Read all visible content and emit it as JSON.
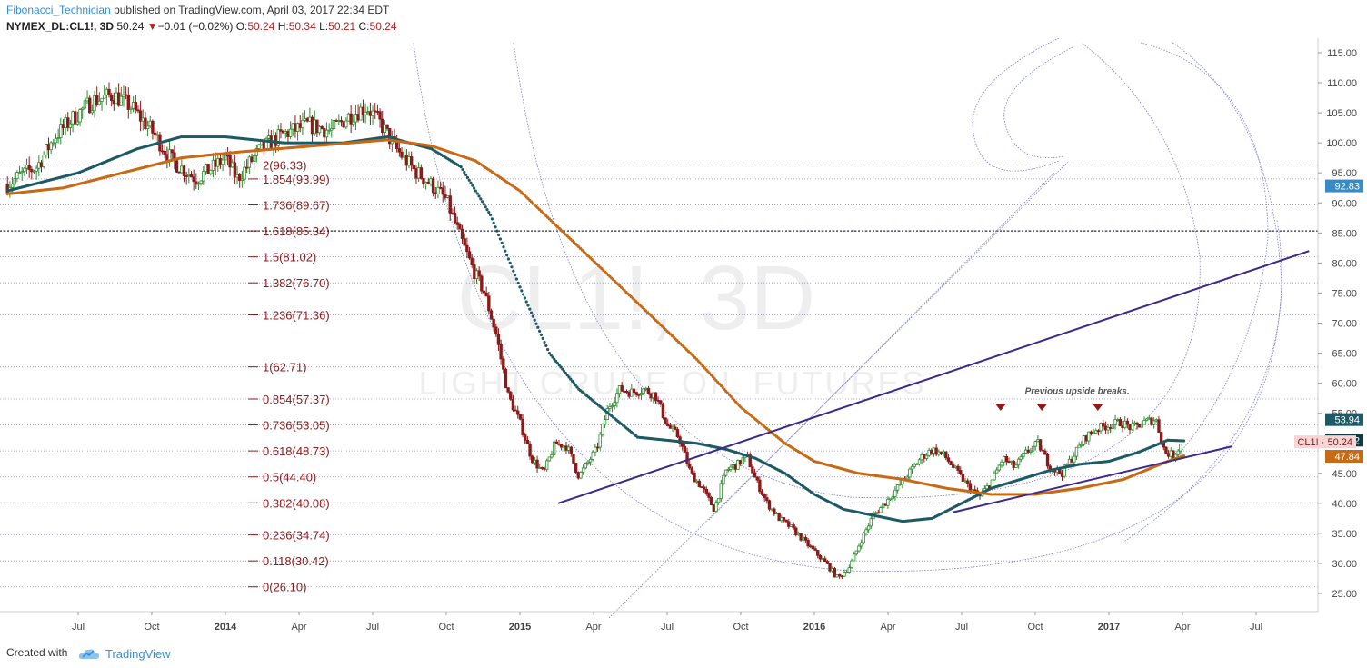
{
  "header": {
    "author": "Fibonacci_Technician",
    "published_text": " published on TradingView.com, April 03, 2017 22:34 EDT",
    "symbol": "NYMEX_DL:CL1!, 3D",
    "last": "50.24",
    "change_text": "−0.01 (−0.02%)",
    "o_label": "O:",
    "o_value": "50.24",
    "h_label": "H:",
    "h_value": "50.34",
    "l_label": "L:",
    "l_value": "50.21",
    "c_label": "C:",
    "c_value": "50.24"
  },
  "footer": {
    "created_with": "Created with",
    "brand": "TradingView"
  },
  "colors": {
    "candle_up": "#2e8b2e",
    "candle_down": "#8b1a1a",
    "ma_fast": "#1e5a66",
    "ma_slow": "#c76a16",
    "trendline": "#3a2a8c",
    "fib_line": "#8c8ccc",
    "fib_text": "#8b1a1a",
    "watermark": "#eeeeee"
  },
  "chart_data": {
    "type": "candlestick",
    "watermark_main": "CL1!, 3D",
    "watermark_sub": "LIGHT CRUDE OIL FUTURES",
    "y_axis": {
      "range": [
        22,
        117
      ],
      "ticks": [
        "115.00",
        "110.00",
        "105.00",
        "100.00",
        "95.00",
        "90.00",
        "85.00",
        "80.00",
        "75.00",
        "70.00",
        "65.00",
        "60.00",
        "55.00",
        "50.00",
        "45.00",
        "40.00",
        "35.00",
        "30.00",
        "25.00"
      ]
    },
    "x_axis": {
      "ticks": [
        {
          "label": "Jul",
          "t": 2013.5,
          "bold": false
        },
        {
          "label": "Oct",
          "t": 2013.75,
          "bold": false
        },
        {
          "label": "2014",
          "t": 2014.0,
          "bold": true
        },
        {
          "label": "Apr",
          "t": 2014.25,
          "bold": false
        },
        {
          "label": "Jul",
          "t": 2014.5,
          "bold": false
        },
        {
          "label": "Oct",
          "t": 2014.75,
          "bold": false
        },
        {
          "label": "2015",
          "t": 2015.0,
          "bold": true
        },
        {
          "label": "Apr",
          "t": 2015.25,
          "bold": false
        },
        {
          "label": "Jul",
          "t": 2015.5,
          "bold": false
        },
        {
          "label": "Oct",
          "t": 2015.75,
          "bold": false
        },
        {
          "label": "2016",
          "t": 2016.0,
          "bold": true
        },
        {
          "label": "Apr",
          "t": 2016.25,
          "bold": false
        },
        {
          "label": "Jul",
          "t": 2016.5,
          "bold": false
        },
        {
          "label": "Oct",
          "t": 2016.75,
          "bold": false
        },
        {
          "label": "2017",
          "t": 2017.0,
          "bold": true
        },
        {
          "label": "Apr",
          "t": 2017.25,
          "bold": false
        },
        {
          "label": "Jul",
          "t": 2017.5,
          "bold": false
        }
      ]
    },
    "price_path": [
      [
        2013.26,
        93.0
      ],
      [
        2013.3,
        94.5
      ],
      [
        2013.36,
        96.0
      ],
      [
        2013.42,
        101.0
      ],
      [
        2013.48,
        104.0
      ],
      [
        2013.55,
        107.0
      ],
      [
        2013.62,
        108.0
      ],
      [
        2013.68,
        106.0
      ],
      [
        2013.75,
        102.0
      ],
      [
        2013.82,
        97.0
      ],
      [
        2013.9,
        94.0
      ],
      [
        2013.96,
        96.0
      ],
      [
        2014.0,
        97.5
      ],
      [
        2014.04,
        94.0
      ],
      [
        2014.08,
        96.5
      ],
      [
        2014.12,
        99.0
      ],
      [
        2014.2,
        101.5
      ],
      [
        2014.28,
        103.0
      ],
      [
        2014.36,
        102.0
      ],
      [
        2014.42,
        104.5
      ],
      [
        2014.48,
        106.0
      ],
      [
        2014.53,
        103.0
      ],
      [
        2014.58,
        99.0
      ],
      [
        2014.64,
        95.5
      ],
      [
        2014.7,
        93.0
      ],
      [
        2014.75,
        90.5
      ],
      [
        2014.8,
        84.0
      ],
      [
        2014.84,
        79.0
      ],
      [
        2014.88,
        75.0
      ],
      [
        2014.92,
        68.0
      ],
      [
        2014.96,
        58.0
      ],
      [
        2015.0,
        53.5
      ],
      [
        2015.04,
        47.5
      ],
      [
        2015.08,
        45.0
      ],
      [
        2015.12,
        50.0
      ],
      [
        2015.16,
        49.5
      ],
      [
        2015.2,
        44.5
      ],
      [
        2015.26,
        49.0
      ],
      [
        2015.3,
        56.0
      ],
      [
        2015.34,
        59.0
      ],
      [
        2015.38,
        58.5
      ],
      [
        2015.42,
        59.0
      ],
      [
        2015.46,
        58.0
      ],
      [
        2015.5,
        53.0
      ],
      [
        2015.54,
        51.0
      ],
      [
        2015.58,
        45.0
      ],
      [
        2015.62,
        42.5
      ],
      [
        2015.66,
        39.0
      ],
      [
        2015.7,
        45.5
      ],
      [
        2015.74,
        46.5
      ],
      [
        2015.77,
        48.0
      ],
      [
        2015.8,
        44.0
      ],
      [
        2015.84,
        40.0
      ],
      [
        2015.88,
        37.5
      ],
      [
        2015.92,
        36.0
      ],
      [
        2015.96,
        34.0
      ],
      [
        2016.0,
        32.0
      ],
      [
        2016.04,
        30.0
      ],
      [
        2016.08,
        27.5
      ],
      [
        2016.12,
        29.5
      ],
      [
        2016.16,
        34.0
      ],
      [
        2016.2,
        38.0
      ],
      [
        2016.24,
        40.0
      ],
      [
        2016.28,
        42.5
      ],
      [
        2016.32,
        45.0
      ],
      [
        2016.36,
        47.5
      ],
      [
        2016.4,
        49.0
      ],
      [
        2016.44,
        48.0
      ],
      [
        2016.48,
        45.5
      ],
      [
        2016.52,
        43.0
      ],
      [
        2016.56,
        41.0
      ],
      [
        2016.6,
        43.5
      ],
      [
        2016.64,
        47.5
      ],
      [
        2016.68,
        46.0
      ],
      [
        2016.72,
        48.5
      ],
      [
        2016.76,
        50.0
      ],
      [
        2016.8,
        46.0
      ],
      [
        2016.84,
        45.0
      ],
      [
        2016.88,
        48.0
      ],
      [
        2016.92,
        51.0
      ],
      [
        2016.96,
        52.5
      ],
      [
        2017.0,
        53.0
      ],
      [
        2017.04,
        53.5
      ],
      [
        2017.08,
        52.5
      ],
      [
        2017.12,
        53.5
      ],
      [
        2017.16,
        54.0
      ],
      [
        2017.19,
        48.5
      ],
      [
        2017.22,
        48.0
      ],
      [
        2017.25,
        50.24
      ]
    ],
    "moving_averages": [
      {
        "color": "ma_fast",
        "points": [
          [
            2013.26,
            92
          ],
          [
            2013.5,
            95
          ],
          [
            2013.7,
            99
          ],
          [
            2013.85,
            101
          ],
          [
            2014.0,
            101
          ],
          [
            2014.2,
            100
          ],
          [
            2014.4,
            100
          ],
          [
            2014.55,
            101
          ],
          [
            2014.7,
            99
          ],
          [
            2014.8,
            96
          ],
          [
            2014.9,
            88
          ],
          [
            2015.0,
            76
          ],
          [
            2015.1,
            65
          ],
          [
            2015.2,
            59
          ],
          [
            2015.3,
            55
          ],
          [
            2015.4,
            51
          ],
          [
            2015.5,
            50.5
          ],
          [
            2015.6,
            50
          ],
          [
            2015.7,
            49
          ],
          [
            2015.8,
            47.5
          ],
          [
            2015.9,
            45
          ],
          [
            2016.0,
            41.5
          ],
          [
            2016.1,
            39
          ],
          [
            2016.2,
            38
          ],
          [
            2016.3,
            37
          ],
          [
            2016.4,
            37.5
          ],
          [
            2016.5,
            40
          ],
          [
            2016.6,
            42.5
          ],
          [
            2016.7,
            44
          ],
          [
            2016.8,
            45.5
          ],
          [
            2016.9,
            46.5
          ],
          [
            2017.0,
            47
          ],
          [
            2017.1,
            48.5
          ],
          [
            2017.2,
            50.52
          ],
          [
            2017.26,
            50.4
          ]
        ]
      },
      {
        "color": "ma_slow",
        "points": [
          [
            2013.26,
            91.5
          ],
          [
            2013.45,
            92.5
          ],
          [
            2013.65,
            95
          ],
          [
            2013.85,
            97.5
          ],
          [
            2014.05,
            98.5
          ],
          [
            2014.3,
            99.5
          ],
          [
            2014.55,
            100.5
          ],
          [
            2014.7,
            99.5
          ],
          [
            2014.85,
            97
          ],
          [
            2015.0,
            92
          ],
          [
            2015.15,
            85
          ],
          [
            2015.3,
            78
          ],
          [
            2015.45,
            71
          ],
          [
            2015.6,
            64
          ],
          [
            2015.75,
            56
          ],
          [
            2015.9,
            50
          ],
          [
            2016.0,
            47
          ],
          [
            2016.15,
            45
          ],
          [
            2016.3,
            44
          ],
          [
            2016.45,
            42.5
          ],
          [
            2016.6,
            41.5
          ],
          [
            2016.75,
            41.5
          ],
          [
            2016.9,
            42.5
          ],
          [
            2017.05,
            44
          ],
          [
            2017.2,
            47
          ],
          [
            2017.26,
            48
          ]
        ]
      }
    ],
    "fib_levels": [
      {
        "label": "2(96.33)",
        "price": 96.33
      },
      {
        "label": "1.854(93.99)",
        "price": 93.99
      },
      {
        "label": "1.736(89.67)",
        "price": 89.67
      },
      {
        "label": "1.618(85.34)",
        "price": 85.34
      },
      {
        "label": "1.5(81.02)",
        "price": 81.02
      },
      {
        "label": "1.382(76.70)",
        "price": 76.7
      },
      {
        "label": "1.236(71.36)",
        "price": 71.36
      },
      {
        "label": "1(62.71)",
        "price": 62.71
      },
      {
        "label": "0.854(57.37)",
        "price": 57.37
      },
      {
        "label": "0.736(53.05)",
        "price": 53.05
      },
      {
        "label": "0.618(48.73)",
        "price": 48.73
      },
      {
        "label": "0.5(44.40)",
        "price": 44.4
      },
      {
        "label": "0.382(40.08)",
        "price": 40.08
      },
      {
        "label": "0.236(34.74)",
        "price": 34.74
      },
      {
        "label": "0.118(30.42)",
        "price": 30.42
      },
      {
        "label": "0(26.10)",
        "price": 26.1
      }
    ],
    "trendlines": [
      {
        "t1": 2015.13,
        "p1": 40.0,
        "t2": 2017.68,
        "p2": 82.0
      },
      {
        "t1": 2016.47,
        "p1": 38.5,
        "t2": 2017.42,
        "p2": 49.5
      }
    ],
    "annotation": {
      "text": "Previous upside breaks.",
      "t": 2016.88,
      "price": 58.8
    },
    "markers": [
      {
        "t": 2016.62,
        "price": 56.0
      },
      {
        "t": 2016.76,
        "price": 56.0
      },
      {
        "t": 2016.95,
        "price": 56.0
      }
    ],
    "price_labels": [
      {
        "text": "92.83",
        "price": 92.83,
        "bg": "#3a8ac4",
        "fg": "#ffffff"
      },
      {
        "text": "53.94",
        "price": 53.94,
        "bg": "#1e5a66",
        "fg": "#ffffff"
      },
      {
        "text": "50.52",
        "price": 50.52,
        "bg": "#123c45",
        "fg": "#ffffff"
      },
      {
        "text": "CL1! · 50.24",
        "price": 50.24,
        "bg": "#f8d4d4",
        "fg": "#7a1a1a",
        "wide": true
      },
      {
        "text": "47.84",
        "price": 47.84,
        "bg": "#c76a16",
        "fg": "#ffffff"
      }
    ]
  }
}
